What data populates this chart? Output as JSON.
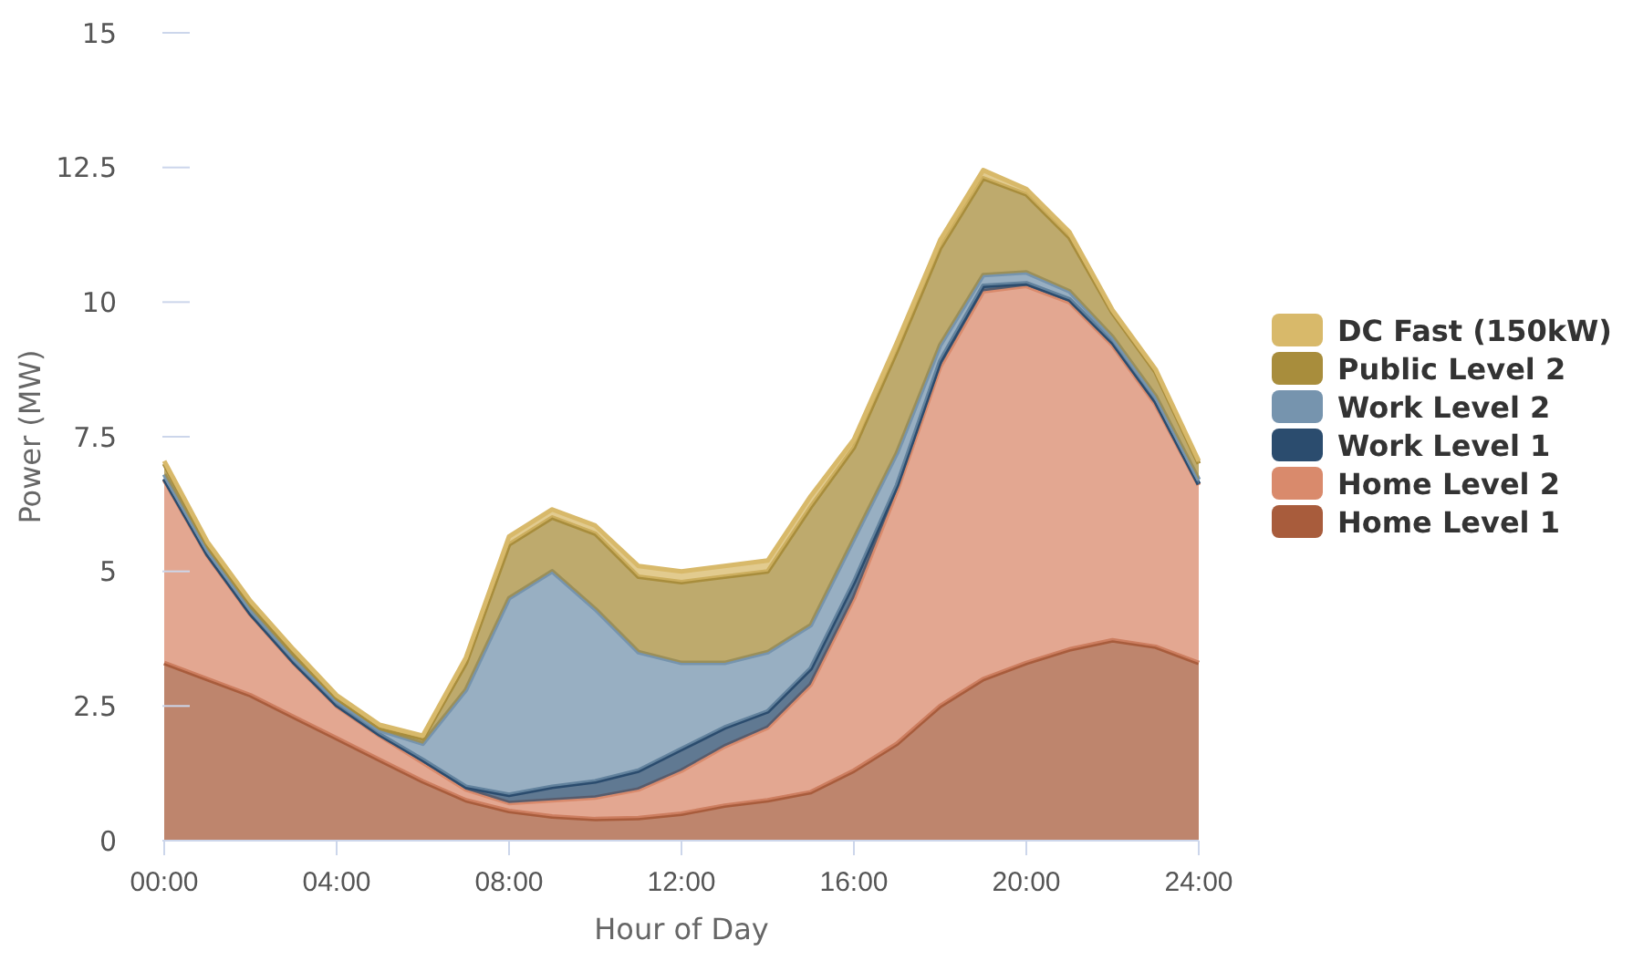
{
  "chart_data": {
    "type": "area",
    "stacked": true,
    "xlabel": "Hour of Day",
    "ylabel": "Power (MW)",
    "x": [
      0,
      1,
      2,
      3,
      4,
      5,
      6,
      7,
      8,
      9,
      10,
      11,
      12,
      13,
      14,
      15,
      16,
      17,
      18,
      19,
      20,
      21,
      22,
      23,
      24
    ],
    "xlim": [
      0,
      24
    ],
    "xticks": [
      {
        "value": 0,
        "label": "00:00"
      },
      {
        "value": 4,
        "label": "04:00"
      },
      {
        "value": 8,
        "label": "08:00"
      },
      {
        "value": 12,
        "label": "12:00"
      },
      {
        "value": 16,
        "label": "16:00"
      },
      {
        "value": 20,
        "label": "20:00"
      },
      {
        "value": 24,
        "label": "24:00"
      }
    ],
    "ylim": [
      0,
      15
    ],
    "yticks": [
      0,
      2.5,
      5,
      7.5,
      10,
      12.5,
      15
    ],
    "grid": false,
    "legend": "right",
    "series": [
      {
        "name": "Home Level 1",
        "color": "#a85c3c",
        "values": [
          3.3,
          3.0,
          2.7,
          2.3,
          1.9,
          1.5,
          1.1,
          0.75,
          0.55,
          0.45,
          0.4,
          0.42,
          0.5,
          0.65,
          0.75,
          0.9,
          1.3,
          1.8,
          2.5,
          3.0,
          3.3,
          3.55,
          3.72,
          3.6,
          3.3
        ]
      },
      {
        "name": "Home Level 2",
        "color": "#d98a6c",
        "values": [
          3.4,
          2.3,
          1.5,
          1.0,
          0.6,
          0.45,
          0.35,
          0.2,
          0.15,
          0.3,
          0.4,
          0.53,
          0.8,
          1.1,
          1.35,
          2.0,
          3.2,
          4.7,
          6.3,
          7.2,
          7.0,
          6.45,
          5.48,
          4.5,
          3.3
        ]
      },
      {
        "name": "Work Level 1",
        "color": "#2b4c6e",
        "values": [
          0.02,
          0.02,
          0.02,
          0.02,
          0.02,
          0.02,
          0.05,
          0.05,
          0.15,
          0.25,
          0.3,
          0.35,
          0.4,
          0.35,
          0.3,
          0.3,
          0.3,
          0.1,
          0.1,
          0.1,
          0.05,
          0.05,
          0.05,
          0.05,
          0.02
        ]
      },
      {
        "name": "Work Level 2",
        "color": "#7694ae",
        "values": [
          0.08,
          0.08,
          0.08,
          0.08,
          0.08,
          0.08,
          0.3,
          1.8,
          3.65,
          4.0,
          3.2,
          2.2,
          1.6,
          1.2,
          1.1,
          0.8,
          0.8,
          0.6,
          0.3,
          0.2,
          0.2,
          0.15,
          0.1,
          0.1,
          0.08
        ]
      },
      {
        "name": "Public Level 2",
        "color": "#a88d3c",
        "values": [
          0.2,
          0.1,
          0.1,
          0.1,
          0.05,
          0.05,
          0.1,
          0.5,
          1.0,
          1.0,
          1.4,
          1.4,
          1.5,
          1.6,
          1.5,
          2.2,
          1.7,
          1.9,
          1.8,
          1.8,
          1.45,
          1.0,
          0.45,
          0.45,
          0.3
        ]
      },
      {
        "name": "DC Fast (150kW)",
        "color": "#d8b96a",
        "values": [
          0.05,
          0.05,
          0.05,
          0.05,
          0.05,
          0.05,
          0.05,
          0.1,
          0.15,
          0.15,
          0.15,
          0.2,
          0.2,
          0.2,
          0.2,
          0.2,
          0.15,
          0.15,
          0.15,
          0.15,
          0.1,
          0.1,
          0.05,
          0.05,
          0.05
        ]
      }
    ]
  }
}
